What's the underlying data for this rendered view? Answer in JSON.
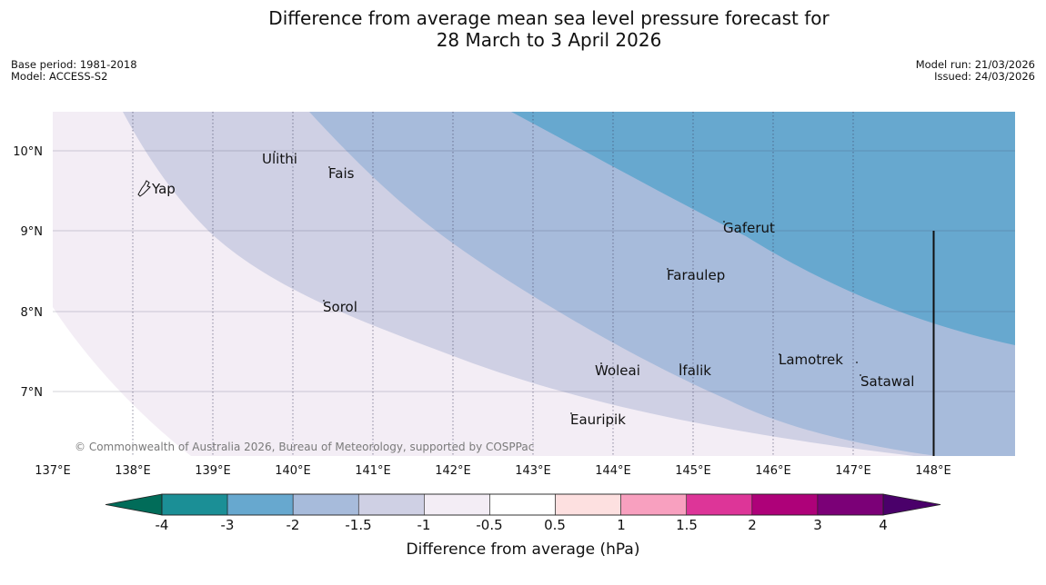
{
  "title_line1": "Difference from average mean sea level pressure forecast for",
  "title_line2": "28 March to 3 April 2026",
  "meta": {
    "base_period": "Base period: 1981-2018",
    "model": "Model: ACCESS-S2",
    "model_run": "Model run: 21/03/2026",
    "issued": "Issued: 24/03/2026"
  },
  "map": {
    "lon_labels": [
      "137°E",
      "138°E",
      "139°E",
      "140°E",
      "141°E",
      "142°E",
      "143°E",
      "144°E",
      "145°E",
      "146°E",
      "147°E",
      "148°E"
    ],
    "lat_labels": [
      "10°N",
      "9°N",
      "8°N",
      "7°N"
    ],
    "places": [
      "Yap",
      "Ulithi",
      "Fais",
      "Sorol",
      "Gaferut",
      "Faraulep",
      "Woleai",
      "Ifalik",
      "Lamotrek",
      "Satawal",
      "Eauripik"
    ],
    "copyright": "© Commonwealth of Australia 2026, Bureau of Meteorology, supported by COSPPac"
  },
  "colorbar": {
    "ticks": [
      "-4",
      "-3",
      "-2",
      "-1.5",
      "-1",
      "-0.5",
      "0.5",
      "1",
      "1.5",
      "2",
      "3",
      "4"
    ],
    "colors": [
      "#1b8f96",
      "#67a8cf",
      "#a7bbdb",
      "#cfd0e4",
      "#f3edf5",
      "#ffffff",
      "#fde0e0",
      "#f8a0bf",
      "#dd3598",
      "#ae0179",
      "#7b0077"
    ],
    "under_color": "#016c59",
    "over_color": "#4a006a",
    "label": "Difference from average (hPa)"
  },
  "colors": {
    "band_weak_negative": "#f3edf5",
    "band_minus_1_5": "#cfd0e4",
    "band_minus_2": "#a7bbdb",
    "band_minus_3": "#67a8cf"
  }
}
